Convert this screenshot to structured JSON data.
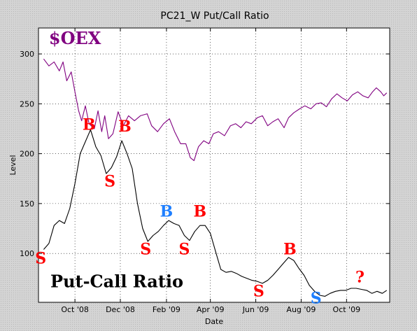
{
  "chart_data": {
    "type": "line",
    "title": "PC21_W Put/Call Ratio",
    "xlabel": "Date",
    "ylabel": "Level",
    "x_range": [
      "2008-08-13",
      "2009-11-28"
    ],
    "ylim": [
      51,
      326
    ],
    "x_ticks": [
      {
        "date": "2008-10-01",
        "label": "Oct '08"
      },
      {
        "date": "2008-12-01",
        "label": "Dec '08"
      },
      {
        "date": "2009-02-01",
        "label": "Feb '09"
      },
      {
        "date": "2009-04-01",
        "label": "Apr '09"
      },
      {
        "date": "2009-06-01",
        "label": "Jun '09"
      },
      {
        "date": "2009-08-01",
        "label": "Aug '09"
      },
      {
        "date": "2009-10-01",
        "label": "Oct '09"
      }
    ],
    "y_ticks": [
      100,
      150,
      200,
      250,
      300
    ],
    "grid": true,
    "series": [
      {
        "name": "$OEX",
        "color": "#800080",
        "label_color": "#800080",
        "points": [
          [
            "2008-08-20",
            295
          ],
          [
            "2008-08-27",
            288
          ],
          [
            "2008-09-03",
            292
          ],
          [
            "2008-09-10",
            283
          ],
          [
            "2008-09-15",
            292
          ],
          [
            "2008-09-20",
            273
          ],
          [
            "2008-09-26",
            282
          ],
          [
            "2008-10-01",
            262
          ],
          [
            "2008-10-06",
            243
          ],
          [
            "2008-10-10",
            233
          ],
          [
            "2008-10-15",
            248
          ],
          [
            "2008-10-20",
            230
          ],
          [
            "2008-10-27",
            225
          ],
          [
            "2008-11-01",
            243
          ],
          [
            "2008-11-06",
            222
          ],
          [
            "2008-11-10",
            238
          ],
          [
            "2008-11-15",
            215
          ],
          [
            "2008-11-21",
            220
          ],
          [
            "2008-11-28",
            242
          ],
          [
            "2008-12-05",
            228
          ],
          [
            "2008-12-12",
            238
          ],
          [
            "2008-12-20",
            233
          ],
          [
            "2008-12-28",
            238
          ],
          [
            "2009-01-06",
            240
          ],
          [
            "2009-01-12",
            228
          ],
          [
            "2009-01-20",
            222
          ],
          [
            "2009-01-28",
            230
          ],
          [
            "2009-02-05",
            235
          ],
          [
            "2009-02-12",
            222
          ],
          [
            "2009-02-20",
            210
          ],
          [
            "2009-02-27",
            210
          ],
          [
            "2009-03-05",
            196
          ],
          [
            "2009-03-10",
            193
          ],
          [
            "2009-03-16",
            207
          ],
          [
            "2009-03-23",
            213
          ],
          [
            "2009-03-30",
            210
          ],
          [
            "2009-04-05",
            220
          ],
          [
            "2009-04-12",
            222
          ],
          [
            "2009-04-20",
            218
          ],
          [
            "2009-04-28",
            228
          ],
          [
            "2009-05-05",
            230
          ],
          [
            "2009-05-12",
            226
          ],
          [
            "2009-05-19",
            232
          ],
          [
            "2009-05-26",
            230
          ],
          [
            "2009-06-03",
            236
          ],
          [
            "2009-06-10",
            238
          ],
          [
            "2009-06-17",
            228
          ],
          [
            "2009-06-24",
            232
          ],
          [
            "2009-07-01",
            235
          ],
          [
            "2009-07-09",
            226
          ],
          [
            "2009-07-15",
            236
          ],
          [
            "2009-07-22",
            241
          ],
          [
            "2009-07-30",
            245
          ],
          [
            "2009-08-06",
            248
          ],
          [
            "2009-08-14",
            245
          ],
          [
            "2009-08-21",
            250
          ],
          [
            "2009-08-28",
            251
          ],
          [
            "2009-09-04",
            247
          ],
          [
            "2009-09-11",
            255
          ],
          [
            "2009-09-18",
            260
          ],
          [
            "2009-09-25",
            256
          ],
          [
            "2009-10-02",
            253
          ],
          [
            "2009-10-09",
            259
          ],
          [
            "2009-10-16",
            262
          ],
          [
            "2009-10-23",
            258
          ],
          [
            "2009-10-30",
            256
          ],
          [
            "2009-11-05",
            262
          ],
          [
            "2009-11-10",
            266
          ],
          [
            "2009-11-16",
            262
          ],
          [
            "2009-11-20",
            258
          ],
          [
            "2009-11-24",
            261
          ]
        ]
      },
      {
        "name": "Put-Call Ratio",
        "color": "#000000",
        "label_color": "#000000",
        "points": [
          [
            "2008-08-20",
            104
          ],
          [
            "2008-08-27",
            110
          ],
          [
            "2008-09-03",
            128
          ],
          [
            "2008-09-10",
            133
          ],
          [
            "2008-09-17",
            130
          ],
          [
            "2008-09-24",
            145
          ],
          [
            "2008-10-01",
            170
          ],
          [
            "2008-10-08",
            200
          ],
          [
            "2008-10-15",
            212
          ],
          [
            "2008-10-22",
            224
          ],
          [
            "2008-10-29",
            207
          ],
          [
            "2008-11-05",
            198
          ],
          [
            "2008-11-12",
            180
          ],
          [
            "2008-11-19",
            186
          ],
          [
            "2008-11-26",
            197
          ],
          [
            "2008-12-03",
            213
          ],
          [
            "2008-12-10",
            200
          ],
          [
            "2008-12-17",
            185
          ],
          [
            "2008-12-24",
            150
          ],
          [
            "2008-12-31",
            125
          ],
          [
            "2009-01-07",
            112
          ],
          [
            "2009-01-14",
            118
          ],
          [
            "2009-01-21",
            122
          ],
          [
            "2009-01-28",
            128
          ],
          [
            "2009-02-04",
            133
          ],
          [
            "2009-02-11",
            130
          ],
          [
            "2009-02-18",
            128
          ],
          [
            "2009-02-25",
            118
          ],
          [
            "2009-03-04",
            113
          ],
          [
            "2009-03-11",
            122
          ],
          [
            "2009-03-18",
            128
          ],
          [
            "2009-03-25",
            128
          ],
          [
            "2009-04-01",
            120
          ],
          [
            "2009-04-08",
            102
          ],
          [
            "2009-04-15",
            84
          ],
          [
            "2009-04-22",
            81
          ],
          [
            "2009-04-29",
            82
          ],
          [
            "2009-05-06",
            80
          ],
          [
            "2009-05-13",
            77
          ],
          [
            "2009-05-20",
            75
          ],
          [
            "2009-05-27",
            73
          ],
          [
            "2009-06-03",
            72
          ],
          [
            "2009-06-10",
            70
          ],
          [
            "2009-06-17",
            73
          ],
          [
            "2009-06-24",
            78
          ],
          [
            "2009-07-01",
            84
          ],
          [
            "2009-07-08",
            90
          ],
          [
            "2009-07-15",
            96
          ],
          [
            "2009-07-22",
            93
          ],
          [
            "2009-07-29",
            85
          ],
          [
            "2009-08-05",
            78
          ],
          [
            "2009-08-12",
            68
          ],
          [
            "2009-08-19",
            62
          ],
          [
            "2009-08-26",
            58
          ],
          [
            "2009-09-02",
            57
          ],
          [
            "2009-09-09",
            60
          ],
          [
            "2009-09-16",
            62
          ],
          [
            "2009-09-23",
            63
          ],
          [
            "2009-09-30",
            63
          ],
          [
            "2009-10-07",
            65
          ],
          [
            "2009-10-14",
            65
          ],
          [
            "2009-10-21",
            64
          ],
          [
            "2009-10-28",
            63
          ],
          [
            "2009-11-04",
            60
          ],
          [
            "2009-11-11",
            62
          ],
          [
            "2009-11-18",
            60
          ],
          [
            "2009-11-24",
            63
          ]
        ]
      }
    ],
    "series_labels": [
      {
        "text": "$OEX",
        "color": "#800080",
        "date": "2008-08-27",
        "level": 310
      },
      {
        "text": "Put-Call Ratio",
        "color": "#000000",
        "date": "2008-08-29",
        "level": 66
      }
    ],
    "annotations": [
      {
        "text": "S",
        "color": "#ff0000",
        "date": "2008-08-16",
        "level": 90
      },
      {
        "text": "B",
        "color": "#ff0000",
        "date": "2008-10-20",
        "level": 224
      },
      {
        "text": "S",
        "color": "#ff0000",
        "date": "2008-11-17",
        "level": 167
      },
      {
        "text": "B",
        "color": "#ff0000",
        "date": "2008-12-07",
        "level": 222
      },
      {
        "text": "S",
        "color": "#ff0000",
        "date": "2009-01-04",
        "level": 99
      },
      {
        "text": "B",
        "color": "#1e7fff",
        "date": "2009-02-01",
        "level": 137
      },
      {
        "text": "S",
        "color": "#ff0000",
        "date": "2009-02-25",
        "level": 99
      },
      {
        "text": "B",
        "color": "#ff0000",
        "date": "2009-03-18",
        "level": 137
      },
      {
        "text": "S",
        "color": "#ff0000",
        "date": "2009-06-05",
        "level": 57
      },
      {
        "text": "B",
        "color": "#ff0000",
        "date": "2009-07-17",
        "level": 99
      },
      {
        "text": "S",
        "color": "#1e7fff",
        "date": "2009-08-21",
        "level": 50
      },
      {
        "text": "?",
        "color": "#ff0000",
        "date": "2009-10-19",
        "level": 71
      }
    ]
  }
}
